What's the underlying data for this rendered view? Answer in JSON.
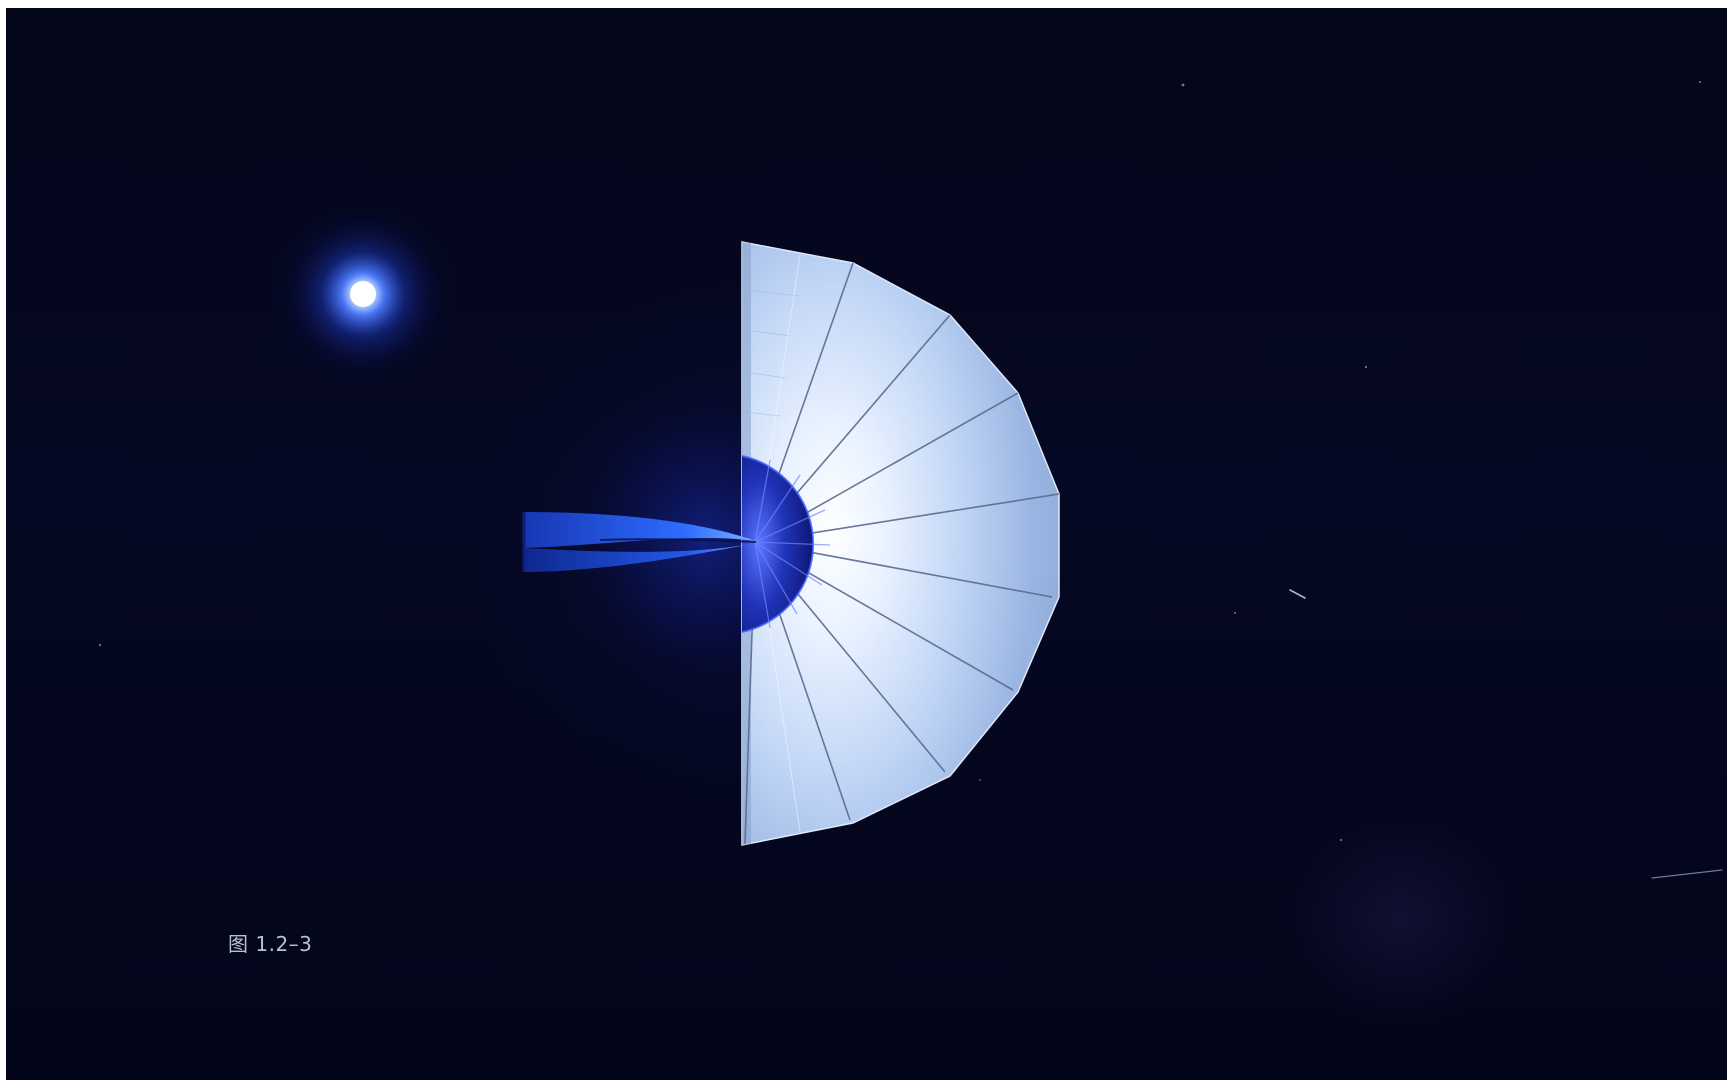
{
  "figure": {
    "caption": "图 1.2–3"
  },
  "colors": {
    "background": "#04061a",
    "star": "#cfe6ff",
    "star_glow": "#2f5cff",
    "sail_light": "#f2f7ff",
    "sail_mid": "#a9c3ee",
    "hub_blue": "#1b2fb0",
    "boom_blue": "#1f5cff"
  },
  "scene": {
    "objects": [
      "star-icon",
      "solar-sail",
      "sail-hub",
      "boom-blade"
    ]
  }
}
